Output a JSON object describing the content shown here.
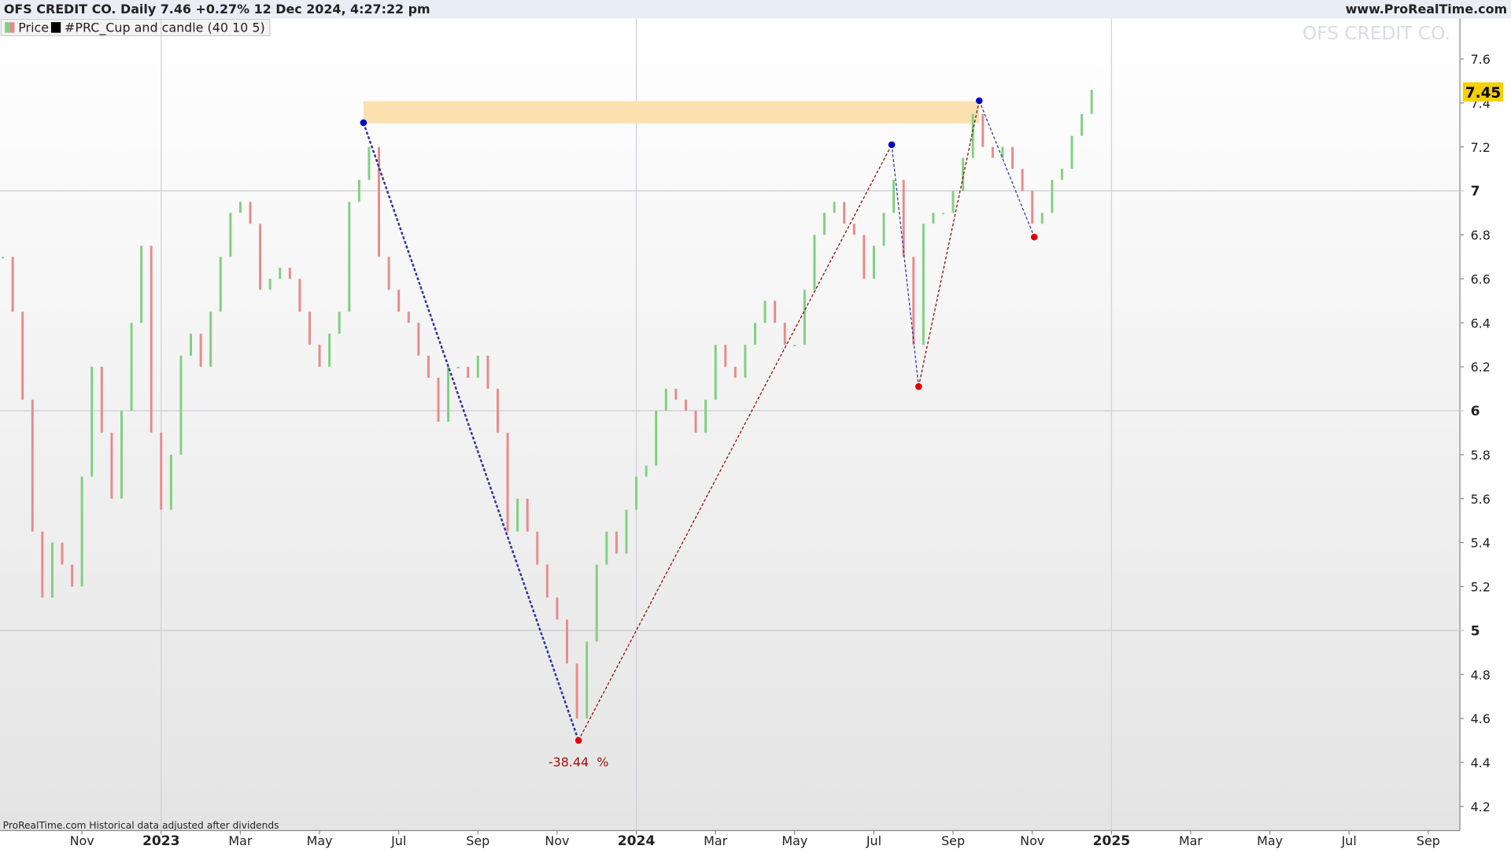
{
  "header": {
    "title": "OFS CREDIT CO. Daily 7.46 +0.27% 12 Dec 2024, 4:27:22 pm",
    "site": "www.ProRealTime.com"
  },
  "legend": [
    "Price",
    "#PRC_Cup and candle (40 10 5)"
  ],
  "footer": "ProRealTime.com Historical data adjusted after dividends",
  "chart_data": {
    "type": "bar_chart_price",
    "watermark": "OFS CREDIT CO.",
    "xlim": [
      -2.07,
      34.8
    ],
    "xticks": [
      {
        "value": 0,
        "label": "Nov"
      },
      {
        "value": 2,
        "label": "2023"
      },
      {
        "value": 4,
        "label": "Mar"
      },
      {
        "value": 6,
        "label": "May"
      },
      {
        "value": 8,
        "label": "Jul"
      },
      {
        "value": 10,
        "label": "Sep"
      },
      {
        "value": 12,
        "label": "Nov"
      },
      {
        "value": 14,
        "label": "2024"
      },
      {
        "value": 16,
        "label": "Mar"
      },
      {
        "value": 18,
        "label": "May"
      },
      {
        "value": 20,
        "label": "Jul"
      },
      {
        "value": 22,
        "label": "Sep"
      },
      {
        "value": 24,
        "label": "Nov"
      },
      {
        "value": 26,
        "label": "2025"
      },
      {
        "value": 28,
        "label": "Mar"
      },
      {
        "value": 30,
        "label": "May"
      },
      {
        "value": 32,
        "label": "Jul"
      },
      {
        "value": 34,
        "label": "Sep"
      }
    ],
    "ylim": [
      4.09,
      7.785
    ],
    "yticks": [
      4.2,
      4.4,
      4.6,
      4.8,
      5,
      5.2,
      5.4,
      5.6,
      5.8,
      6,
      6.2,
      6.4,
      6.6,
      6.8,
      7,
      7.2,
      7.4,
      7.6
    ],
    "up_color": "#7fd07f",
    "down_color": "#e88a8a",
    "price_tag": 7.45,
    "series": [
      {
        "name": "Price",
        "x": [
          -2,
          -1.75,
          -1.5,
          -1.25,
          -1,
          -0.75,
          -0.5,
          -0.25,
          0,
          0.25,
          0.5,
          0.75,
          1,
          1.25,
          1.5,
          1.75,
          2,
          2.25,
          2.5,
          2.75,
          3,
          3.25,
          3.5,
          3.75,
          4,
          4.25,
          4.5,
          4.75,
          5,
          5.25,
          5.5,
          5.75,
          6,
          6.25,
          6.5,
          6.75,
          7,
          7.25,
          7.5,
          7.75,
          8,
          8.25,
          8.5,
          8.75,
          9,
          9.25,
          9.5,
          9.75,
          10,
          10.25,
          10.5,
          10.75,
          11,
          11.25,
          11.5,
          11.75,
          12,
          12.25,
          12.5,
          12.75,
          13,
          13.25,
          13.5,
          13.75,
          14,
          14.25,
          14.5,
          14.75,
          15,
          15.25,
          15.5,
          15.75,
          16,
          16.25,
          16.5,
          16.75,
          17,
          17.25,
          17.5,
          17.75,
          18,
          18.25,
          18.5,
          18.75,
          19,
          19.25,
          19.5,
          19.75,
          20,
          20.25,
          20.5,
          20.75,
          21,
          21.25,
          21.5,
          21.75,
          22,
          22.25,
          22.5,
          22.75,
          23,
          23.25,
          23.5,
          23.75,
          24,
          24.25,
          24.5,
          24.75,
          25,
          25.25,
          25.5
        ],
        "values": [
          6.7,
          6.45,
          6.05,
          5.45,
          5.15,
          5.4,
          5.3,
          5.2,
          5.7,
          6.2,
          5.9,
          5.6,
          6.0,
          6.4,
          6.75,
          5.9,
          5.55,
          5.8,
          6.25,
          6.35,
          6.2,
          6.45,
          6.7,
          6.9,
          6.95,
          6.85,
          6.55,
          6.6,
          6.65,
          6.6,
          6.45,
          6.3,
          6.2,
          6.35,
          6.45,
          6.95,
          7.05,
          7.2,
          6.7,
          6.55,
          6.45,
          6.4,
          6.25,
          6.15,
          5.95,
          6.2,
          6.2,
          6.15,
          6.25,
          6.1,
          5.9,
          5.45,
          5.6,
          5.45,
          5.3,
          5.15,
          5.05,
          4.85,
          4.6,
          4.95,
          5.3,
          5.45,
          5.35,
          5.55,
          5.7,
          5.75,
          6.0,
          6.1,
          6.05,
          6.0,
          5.9,
          6.05,
          6.3,
          6.2,
          6.15,
          6.3,
          6.4,
          6.5,
          6.4,
          6.3,
          6.3,
          6.55,
          6.8,
          6.9,
          6.95,
          6.85,
          6.8,
          6.6,
          6.75,
          6.9,
          7.05,
          6.7,
          6.3,
          6.85,
          6.9,
          6.9,
          7.0,
          7.15,
          7.35,
          7.2,
          7.15,
          7.2,
          7.1,
          7.0,
          6.85,
          6.9,
          7.05,
          7.1,
          7.25,
          7.35,
          7.46
        ]
      }
    ],
    "pattern": {
      "zone": {
        "x": [
          7.11,
          22.66
        ],
        "y": [
          7.307,
          7.408
        ],
        "color": "#fbe0b0"
      },
      "points": [
        {
          "x": 7.11,
          "y": 7.31,
          "color": "#0000cc"
        },
        {
          "x": 12.54,
          "y": 4.5,
          "color": "#e00000"
        },
        {
          "x": 20.45,
          "y": 7.21,
          "color": "#0000cc"
        },
        {
          "x": 21.13,
          "y": 6.11,
          "color": "#e00000"
        },
        {
          "x": 22.66,
          "y": 7.41,
          "color": "#0000cc"
        },
        {
          "x": 24.05,
          "y": 6.79,
          "color": "#e00000"
        }
      ],
      "label": "-38.44  %"
    }
  }
}
